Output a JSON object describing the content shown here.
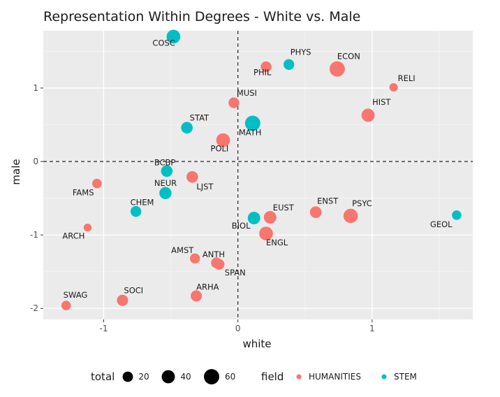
{
  "chart_data": {
    "type": "scatter",
    "title": "Representation Within Degrees - White vs. Male",
    "xlabel": "white",
    "ylabel": "male",
    "xlim": [
      -1.45,
      1.75
    ],
    "ylim": [
      -2.15,
      1.78
    ],
    "x_ticks": [
      -1,
      0,
      1
    ],
    "y_ticks": [
      -2,
      -1,
      0,
      1
    ],
    "x_tick_labels": [
      "-1",
      "0",
      "1"
    ],
    "y_tick_labels": [
      "-2",
      "-1",
      "0",
      "1"
    ],
    "reference_lines": {
      "x": 0,
      "y": 0,
      "style": "dashed"
    },
    "grid": true,
    "legend_position": "bottom",
    "size_legend": {
      "title": "total",
      "values": [
        20,
        40,
        60
      ],
      "labels": [
        "20",
        "40",
        "60"
      ]
    },
    "color_legend": {
      "title": "field",
      "entries": [
        {
          "label": "HUMANITIES",
          "color": "#F8766D"
        },
        {
          "label": "STEM",
          "color": "#00BFC4"
        }
      ]
    },
    "points": [
      {
        "label": "COSC",
        "x": -0.48,
        "y": 1.7,
        "total": 45,
        "field": "STEM"
      },
      {
        "label": "PHYS",
        "x": 0.38,
        "y": 1.32,
        "total": 22,
        "field": "STEM"
      },
      {
        "label": "PHIL",
        "x": 0.21,
        "y": 1.29,
        "total": 22,
        "field": "HUMANITIES"
      },
      {
        "label": "ECON",
        "x": 0.74,
        "y": 1.26,
        "total": 60,
        "field": "HUMANITIES"
      },
      {
        "label": "RELI",
        "x": 1.16,
        "y": 1.01,
        "total": 10,
        "field": "HUMANITIES"
      },
      {
        "label": "MUSI",
        "x": -0.03,
        "y": 0.8,
        "total": 22,
        "field": "HUMANITIES"
      },
      {
        "label": "HIST",
        "x": 0.97,
        "y": 0.63,
        "total": 40,
        "field": "HUMANITIES"
      },
      {
        "label": "STAT",
        "x": -0.38,
        "y": 0.46,
        "total": 28,
        "field": "STEM"
      },
      {
        "label": "MATH",
        "x": 0.11,
        "y": 0.52,
        "total": 60,
        "field": "STEM"
      },
      {
        "label": "POLI",
        "x": -0.11,
        "y": 0.29,
        "total": 45,
        "field": "HUMANITIES"
      },
      {
        "label": "BCBP",
        "x": -0.53,
        "y": -0.13,
        "total": 28,
        "field": "STEM"
      },
      {
        "label": "LJST",
        "x": -0.34,
        "y": -0.21,
        "total": 28,
        "field": "HUMANITIES"
      },
      {
        "label": "FAMS",
        "x": -1.05,
        "y": -0.3,
        "total": 15,
        "field": "HUMANITIES"
      },
      {
        "label": "NEUR",
        "x": -0.54,
        "y": -0.43,
        "total": 32,
        "field": "STEM"
      },
      {
        "label": "CHEM",
        "x": -0.76,
        "y": -0.68,
        "total": 22,
        "field": "STEM"
      },
      {
        "label": "ENST",
        "x": 0.58,
        "y": -0.69,
        "total": 28,
        "field": "HUMANITIES"
      },
      {
        "label": "PSYC",
        "x": 0.84,
        "y": -0.74,
        "total": 50,
        "field": "HUMANITIES"
      },
      {
        "label": "GEOL",
        "x": 1.63,
        "y": -0.73,
        "total": 15,
        "field": "STEM"
      },
      {
        "label": "EUST",
        "x": 0.24,
        "y": -0.76,
        "total": 35,
        "field": "HUMANITIES"
      },
      {
        "label": "BIOL",
        "x": 0.12,
        "y": -0.77,
        "total": 35,
        "field": "STEM"
      },
      {
        "label": "ENGL",
        "x": 0.21,
        "y": -0.98,
        "total": 45,
        "field": "HUMANITIES"
      },
      {
        "label": "ARCH",
        "x": -1.12,
        "y": -0.9,
        "total": 8,
        "field": "HUMANITIES"
      },
      {
        "label": "AMST",
        "x": -0.32,
        "y": -1.32,
        "total": 18,
        "field": "HUMANITIES"
      },
      {
        "label": "ANTH",
        "x": -0.16,
        "y": -1.38,
        "total": 22,
        "field": "HUMANITIES"
      },
      {
        "label": "SPAN",
        "x": -0.14,
        "y": -1.4,
        "total": 22,
        "field": "HUMANITIES"
      },
      {
        "label": "ARHA",
        "x": -0.31,
        "y": -1.83,
        "total": 25,
        "field": "HUMANITIES"
      },
      {
        "label": "SOCI",
        "x": -0.86,
        "y": -1.89,
        "total": 25,
        "field": "HUMANITIES"
      },
      {
        "label": "SWAG",
        "x": -1.28,
        "y": -1.96,
        "total": 15,
        "field": "HUMANITIES"
      }
    ]
  }
}
